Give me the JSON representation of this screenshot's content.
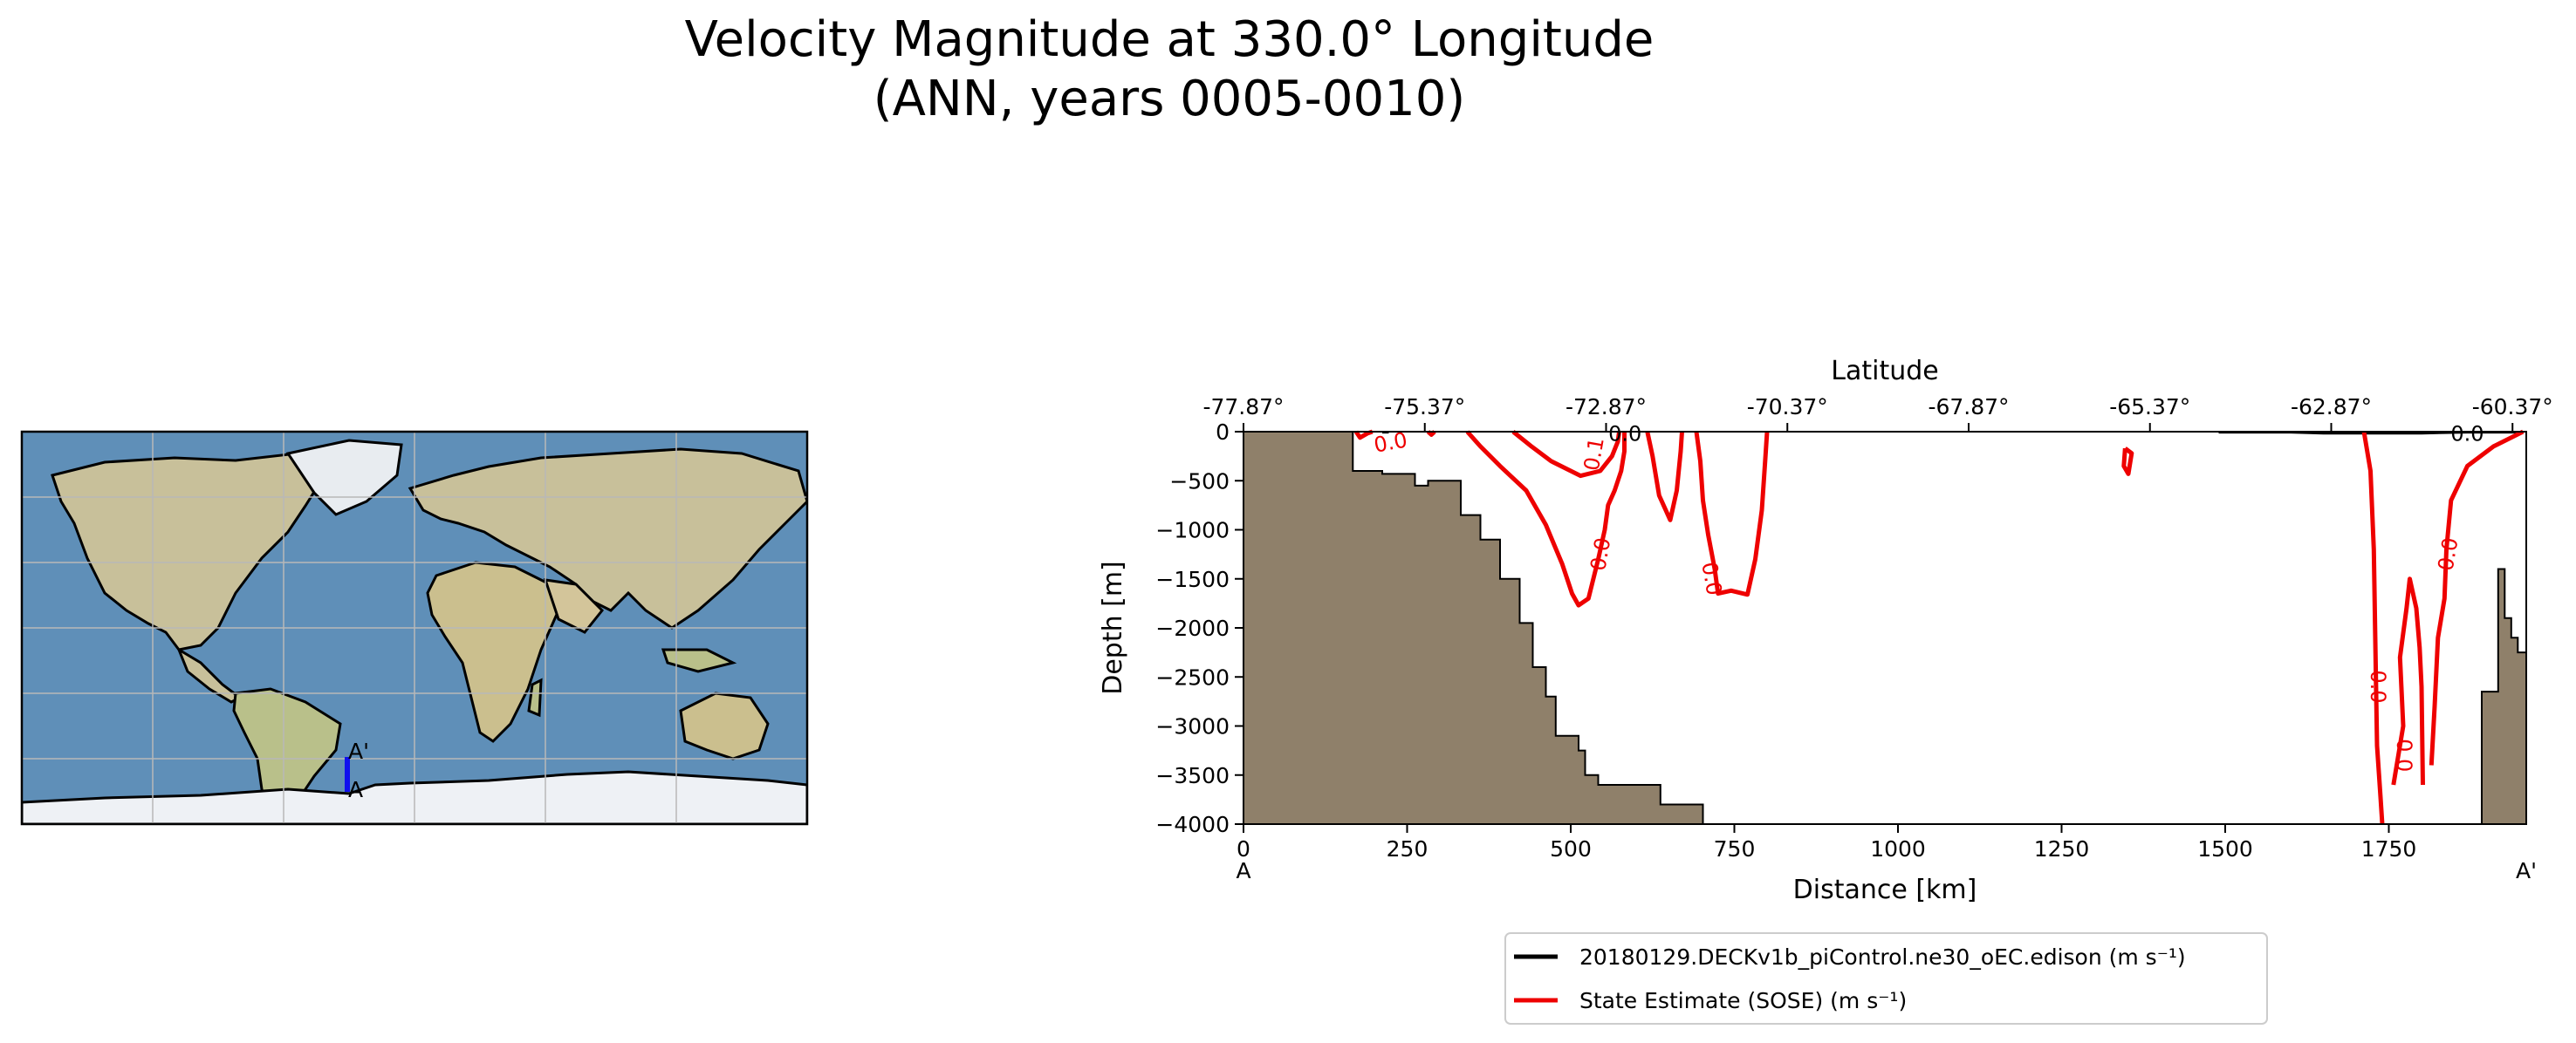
{
  "figure": {
    "title_line1": "Velocity Magnitude at 330.0° Longitude",
    "title_line2": "(ANN, years 0005-0010)"
  },
  "map_inset": {
    "endpoint_start": "A",
    "endpoint_end": "A'",
    "transect_color": "#1010ee",
    "ocean_color": "#5f8fb8",
    "land_color": "#c8c09a",
    "ice_color": "#eef1f5"
  },
  "chart_data": {
    "type": "contour",
    "title": "Velocity Magnitude at 330.0° Longitude",
    "xlabel": "Distance [km]",
    "ylabel": "Depth [m]",
    "top_xlabel": "Latitude",
    "xlim": [
      0,
      1960
    ],
    "ylim": [
      -4000,
      0
    ],
    "x_ticks": [
      0,
      250,
      500,
      750,
      1000,
      1250,
      1500,
      1750
    ],
    "y_ticks": [
      0,
      -500,
      -1000,
      -1500,
      -2000,
      -2500,
      -3000,
      -3500,
      -4000
    ],
    "y_tick_labels": [
      "0",
      "−500",
      "−1000",
      "−1500",
      "−2000",
      "−2500",
      "−3000",
      "−3500",
      "−4000"
    ],
    "top_ticks": [
      0,
      277,
      554,
      831,
      1108,
      1385,
      1662,
      1939
    ],
    "top_tick_labels": [
      "-77.87°",
      "-75.37°",
      "-72.87°",
      "-70.37°",
      "-67.87°",
      "-65.37°",
      "-62.87°",
      "-60.37°"
    ],
    "x_end_labels": [
      "A",
      "A'"
    ],
    "bathymetry_color": "#8f806a",
    "bathymetry": [
      [
        0,
        0
      ],
      [
        167,
        0
      ],
      [
        167,
        -400
      ],
      [
        212,
        -400
      ],
      [
        212,
        -430
      ],
      [
        262,
        -430
      ],
      [
        262,
        -550
      ],
      [
        282,
        -550
      ],
      [
        282,
        -500
      ],
      [
        332,
        -500
      ],
      [
        332,
        -850
      ],
      [
        362,
        -850
      ],
      [
        362,
        -1100
      ],
      [
        392,
        -1100
      ],
      [
        392,
        -1500
      ],
      [
        422,
        -1500
      ],
      [
        422,
        -1950
      ],
      [
        442,
        -1950
      ],
      [
        442,
        -2400
      ],
      [
        462,
        -2400
      ],
      [
        462,
        -2700
      ],
      [
        477,
        -2700
      ],
      [
        477,
        -3100
      ],
      [
        512,
        -3100
      ],
      [
        512,
        -3250
      ],
      [
        522,
        -3250
      ],
      [
        522,
        -3500
      ],
      [
        542,
        -3500
      ],
      [
        542,
        -3600
      ],
      [
        637,
        -3600
      ],
      [
        637,
        -3800
      ],
      [
        702,
        -3800
      ],
      [
        702,
        -4000
      ],
      [
        0,
        -4000
      ]
    ],
    "bathymetry_right": [
      [
        1892,
        -4000
      ],
      [
        1892,
        -2650
      ],
      [
        1917,
        -2650
      ],
      [
        1917,
        -1400
      ],
      [
        1927,
        -1400
      ],
      [
        1927,
        -1900
      ],
      [
        1937,
        -1900
      ],
      [
        1937,
        -2100
      ],
      [
        1947,
        -2100
      ],
      [
        1947,
        -2250
      ],
      [
        1960,
        -2250
      ],
      [
        1960,
        -4000
      ]
    ],
    "series": [
      {
        "name": "20180129.DECKv1b_piControl.ne30_oEC.edison",
        "unit": "m s⁻¹",
        "color": "#000000",
        "contour_level": "0.0",
        "lines": [
          [
            [
              212,
              -5
            ],
            [
              222,
              -5
            ]
          ],
          [
            [
              1490,
              -5
            ],
            [
              1600,
              -5
            ],
            [
              1650,
              -15
            ],
            [
              1800,
              -15
            ],
            [
              1870,
              -5
            ],
            [
              1955,
              -5
            ]
          ]
        ]
      },
      {
        "name": "State Estimate (SOSE)",
        "unit": "m s⁻¹",
        "color": "#ee0000",
        "contour_level": "0.0",
        "lines": [
          [
            [
              172,
              0
            ],
            [
              178,
              -60
            ],
            [
              190,
              -15
            ],
            [
              197,
              0
            ]
          ],
          [
            [
              282,
              0
            ],
            [
              287,
              -30
            ],
            [
              292,
              0
            ]
          ],
          [
            [
              342,
              0
            ],
            [
              362,
              -150
            ],
            [
              392,
              -350
            ],
            [
              432,
              -600
            ],
            [
              462,
              -950
            ],
            [
              487,
              -1350
            ],
            [
              502,
              -1650
            ],
            [
              512,
              -1770
            ],
            [
              527,
              -1700
            ],
            [
              542,
              -1300
            ],
            [
              552,
              -1000
            ],
            [
              557,
              -750
            ],
            [
              567,
              -600
            ],
            [
              577,
              -400
            ],
            [
              582,
              -200
            ],
            [
              582,
              0
            ]
          ],
          [
            [
              412,
              0
            ],
            [
              440,
              -150
            ],
            [
              470,
              -300
            ],
            [
              515,
              -450
            ],
            [
              545,
              -400
            ],
            [
              563,
              -250
            ],
            [
              572,
              -100
            ],
            [
              574,
              0
            ]
          ],
          [
            [
              617,
              0
            ],
            [
              625,
              -250
            ],
            [
              635,
              -650
            ],
            [
              652,
              -900
            ],
            [
              662,
              -600
            ],
            [
              668,
              -200
            ],
            [
              670,
              0
            ]
          ],
          [
            [
              692,
              0
            ],
            [
              698,
              -300
            ],
            [
              702,
              -700
            ],
            [
              710,
              -1050
            ],
            [
              720,
              -1400
            ],
            [
              725,
              -1650
            ],
            [
              745,
              -1620
            ],
            [
              770,
              -1660
            ],
            [
              782,
              -1300
            ],
            [
              792,
              -800
            ],
            [
              797,
              -300
            ],
            [
              800,
              0
            ]
          ],
          [
            [
              1347,
              -170
            ],
            [
              1357,
              -220
            ],
            [
              1352,
              -430
            ],
            [
              1345,
              -350
            ],
            [
              1347,
              -170
            ]
          ],
          [
            [
              1712,
              0
            ],
            [
              1722,
              -400
            ],
            [
              1727,
              -1200
            ],
            [
              1730,
              -2400
            ],
            [
              1732,
              -3200
            ],
            [
              1737,
              -3700
            ],
            [
              1740,
              -4000
            ]
          ],
          [
            [
              1757,
              -3600
            ],
            [
              1772,
              -3000
            ],
            [
              1767,
              -2300
            ],
            [
              1777,
              -1800
            ],
            [
              1782,
              -1500
            ],
            [
              1792,
              -1800
            ],
            [
              1797,
              -2200
            ],
            [
              1800,
              -2600
            ],
            [
              1802,
              -3600
            ]
          ],
          [
            [
              1815,
              -3400
            ],
            [
              1820,
              -2800
            ],
            [
              1825,
              -2100
            ],
            [
              1835,
              -1700
            ],
            [
              1838,
              -1200
            ],
            [
              1845,
              -700
            ],
            [
              1870,
              -350
            ],
            [
              1910,
              -150
            ],
            [
              1955,
              0
            ]
          ]
        ],
        "labels": [
          {
            "text": "0.0",
            "x": 225,
            "y": -120,
            "rotation": -10
          },
          {
            "text": "0.1",
            "x": 537,
            "y": -230,
            "rotation": -80
          },
          {
            "text": "0.0",
            "x": 547,
            "y": -1250,
            "rotation": -80
          },
          {
            "text": "0.0",
            "x": 714,
            "y": -1500,
            "rotation": 80
          },
          {
            "text": "0.0",
            "x": 1732,
            "y": -2600,
            "rotation": 90
          },
          {
            "text": "0.0",
            "x": 1772,
            "y": -3300,
            "rotation": 90
          },
          {
            "text": "0.0",
            "x": 1842,
            "y": -1250,
            "rotation": -80
          }
        ]
      }
    ],
    "black_labels": [
      {
        "text": "0.0",
        "x": 583,
        "y": -30
      },
      {
        "text": "0.0",
        "x": 1870,
        "y": -30
      }
    ],
    "legend": [
      {
        "label": "20180129.DECKv1b_piControl.ne30_oEC.edison (m s⁻¹)",
        "color": "#000000"
      },
      {
        "label": "State Estimate (SOSE) (m s⁻¹)",
        "color": "#ee0000"
      }
    ],
    "legend_position": "bottom-center"
  }
}
